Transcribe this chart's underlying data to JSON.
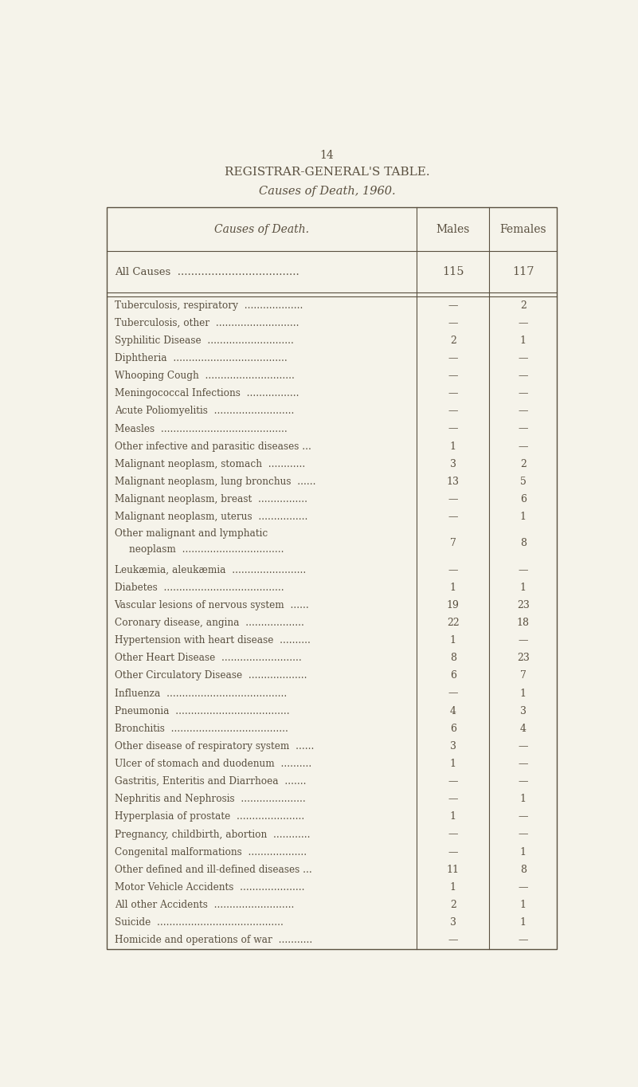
{
  "page_number": "14",
  "title": "REGISTRAR-GENERAL'S TABLE.",
  "subtitle": "Causes of Death, 1960.",
  "col_header_cause": "Causes of Death.",
  "col_header_males": "Males",
  "col_header_females": "Females",
  "background_color": "#f5f3ea",
  "text_color": "#5a5040",
  "rows": [
    {
      "cause": "All Causes  ....................................",
      "males": "115",
      "females": "117",
      "is_total": true
    },
    {
      "cause": "Tuberculosis, respiratory  ...................",
      "males": "—",
      "females": "2",
      "is_total": false
    },
    {
      "cause": "Tuberculosis, other  ...........................",
      "males": "—",
      "females": "—",
      "is_total": false
    },
    {
      "cause": "Syphilitic Disease  ............................",
      "males": "2",
      "females": "1",
      "is_total": false
    },
    {
      "cause": "Diphtheria  .....................................",
      "males": "—",
      "females": "—",
      "is_total": false
    },
    {
      "cause": "Whooping Cough  .............................",
      "males": "—",
      "females": "—",
      "is_total": false
    },
    {
      "cause": "Meningococcal Infections  .................",
      "males": "—",
      "females": "—",
      "is_total": false
    },
    {
      "cause": "Acute Poliomyelitis  ..........................",
      "males": "—",
      "females": "—",
      "is_total": false
    },
    {
      "cause": "Measles  .........................................",
      "males": "—",
      "females": "—",
      "is_total": false
    },
    {
      "cause": "Other infective and parasitic diseases ...",
      "males": "1",
      "females": "—",
      "is_total": false
    },
    {
      "cause": "Malignant neoplasm, stomach  ............",
      "males": "3",
      "females": "2",
      "is_total": false
    },
    {
      "cause": "Malignant neoplasm, lung bronchus  ......",
      "males": "13",
      "females": "5",
      "is_total": false
    },
    {
      "cause": "Malignant neoplasm, breast  ................",
      "males": "—",
      "females": "6",
      "is_total": false
    },
    {
      "cause": "Malignant neoplasm, uterus  ................",
      "males": "—",
      "females": "1",
      "is_total": false
    },
    {
      "cause": "Other malignant and lymphatic|      neoplasm  .................................",
      "males": "7",
      "females": "8",
      "is_total": false
    },
    {
      "cause": "Leukæmia, aleukæmia  ........................",
      "males": "—",
      "females": "—",
      "is_total": false
    },
    {
      "cause": "Diabetes  .......................................",
      "males": "1",
      "females": "1",
      "is_total": false
    },
    {
      "cause": "Vascular lesions of nervous system  ......",
      "males": "19",
      "females": "23",
      "is_total": false
    },
    {
      "cause": "Coronary disease, angina  ...................",
      "males": "22",
      "females": "18",
      "is_total": false
    },
    {
      "cause": "Hypertension with heart disease  ..........",
      "males": "1",
      "females": "—",
      "is_total": false
    },
    {
      "cause": "Other Heart Disease  ..........................",
      "males": "8",
      "females": "23",
      "is_total": false
    },
    {
      "cause": "Other Circulatory Disease  ...................",
      "males": "6",
      "females": "7",
      "is_total": false
    },
    {
      "cause": "Influenza  .......................................",
      "males": "—",
      "females": "1",
      "is_total": false
    },
    {
      "cause": "Pneumonia  .....................................",
      "males": "4",
      "females": "3",
      "is_total": false
    },
    {
      "cause": "Bronchitis  ......................................",
      "males": "6",
      "females": "4",
      "is_total": false
    },
    {
      "cause": "Other disease of respiratory system  ......",
      "males": "3",
      "females": "—",
      "is_total": false
    },
    {
      "cause": "Ulcer of stomach and duodenum  ..........",
      "males": "1",
      "females": "—",
      "is_total": false
    },
    {
      "cause": "Gastritis, Enteritis and Diarrhoea  .......",
      "males": "—",
      "females": "—",
      "is_total": false
    },
    {
      "cause": "Nephritis and Nephrosis  .....................",
      "males": "—",
      "females": "1",
      "is_total": false
    },
    {
      "cause": "Hyperplasia of prostate  ......................",
      "males": "1",
      "females": "—",
      "is_total": false
    },
    {
      "cause": "Pregnancy, childbirth, abortion  ............",
      "males": "—",
      "females": "—",
      "is_total": false
    },
    {
      "cause": "Congenital malformations  ...................",
      "males": "—",
      "females": "1",
      "is_total": false
    },
    {
      "cause": "Other defined and ill-defined diseases ...",
      "males": "11",
      "females": "8",
      "is_total": false
    },
    {
      "cause": "Motor Vehicle Accidents  .....................",
      "males": "1",
      "females": "—",
      "is_total": false
    },
    {
      "cause": "All other Accidents  ..........................",
      "males": "2",
      "females": "1",
      "is_total": false
    },
    {
      "cause": "Suicide  .........................................",
      "males": "3",
      "females": "1",
      "is_total": false
    },
    {
      "cause": "Homicide and operations of war  ...........",
      "males": "—",
      "females": "—",
      "is_total": false
    }
  ]
}
